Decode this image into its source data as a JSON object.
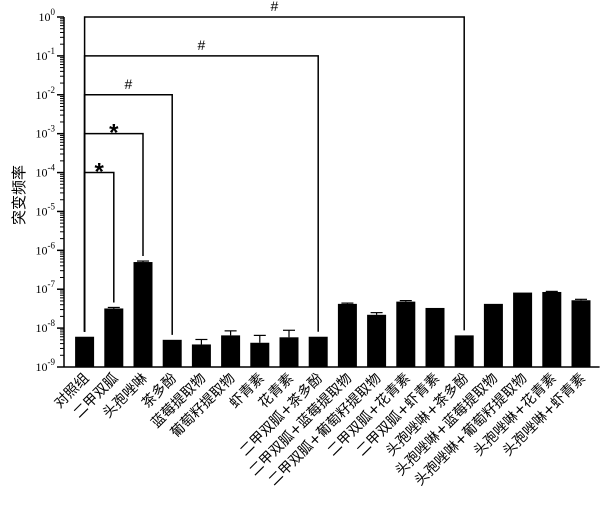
{
  "chart_data": {
    "type": "bar",
    "title": "",
    "xlabel": "",
    "ylabel": "突变频率",
    "yscale": "log",
    "ylim": [
      1e-09,
      1
    ],
    "y_ticks": [
      {
        "value": 1,
        "base": "10",
        "exp": "0"
      },
      {
        "value": 0.1,
        "base": "10",
        "exp": "-1"
      },
      {
        "value": 0.01,
        "base": "10",
        "exp": "-2"
      },
      {
        "value": 0.001,
        "base": "10",
        "exp": "-3"
      },
      {
        "value": 0.0001,
        "base": "10",
        "exp": "-4"
      },
      {
        "value": 1e-05,
        "base": "10",
        "exp": "-5"
      },
      {
        "value": 1e-06,
        "base": "10",
        "exp": "-6"
      },
      {
        "value": 1e-07,
        "base": "10",
        "exp": "-7"
      },
      {
        "value": 1e-08,
        "base": "10",
        "exp": "-8"
      },
      {
        "value": 1e-09,
        "base": "10",
        "exp": "-9"
      }
    ],
    "bar_color": "#000000",
    "categories": [
      "对照组",
      "二甲双胍",
      "头孢唑啉",
      "茶多酚",
      "蓝莓提取物",
      "葡萄籽提取物",
      "虾青素",
      "花青素",
      "二甲双胍+茶多酚",
      "二甲双胍+蓝莓提取物",
      "二甲双胍+葡萄籽提取物",
      "二甲双胍+花青素",
      "二甲双胍+虾青素",
      "头孢唑啉+茶多酚",
      "头孢唑啉+蓝莓提取物",
      "头孢唑啉+葡萄籽提取物",
      "头孢唑啉+花青素",
      "头孢唑啉+虾青素"
    ],
    "values": [
      6e-09,
      3.2e-08,
      5e-07,
      5e-09,
      3.8e-09,
      6.5e-09,
      4.2e-09,
      5.8e-09,
      6e-09,
      4.2e-08,
      2.2e-08,
      4.8e-08,
      3.3e-08,
      6.5e-09,
      4.2e-08,
      8.2e-08,
      8.5e-08,
      5.2e-08
    ],
    "errors": [
      0,
      2e-09,
      3e-08,
      0,
      1.3e-09,
      2e-09,
      2.3e-09,
      3e-09,
      0,
      2e-09,
      3e-09,
      3e-09,
      0,
      0,
      0,
      0,
      3e-09,
      3e-09
    ],
    "annotations": [
      {
        "from": 0,
        "to": 1,
        "label": "*",
        "level": 0.0001
      },
      {
        "from": 0,
        "to": 2,
        "label": "*",
        "level": 0.001
      },
      {
        "from": 0,
        "to": 3,
        "label": "#",
        "level": 0.01
      },
      {
        "from": 0,
        "to": 8,
        "label": "#",
        "level": 0.1
      },
      {
        "from": 0,
        "to": 13,
        "label": "#",
        "level": 1
      }
    ]
  }
}
